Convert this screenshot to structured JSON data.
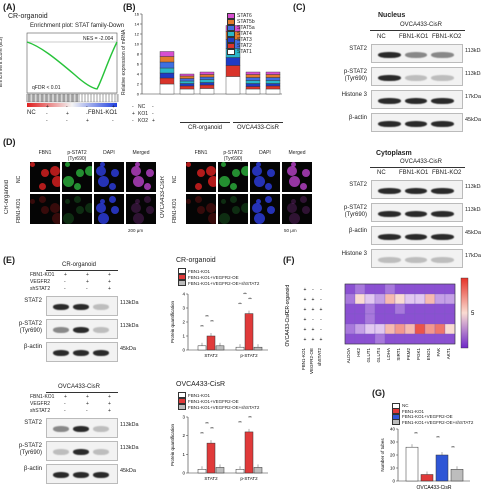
{
  "panels": {
    "A": {
      "label": "(A)",
      "subtitle": "CR-organoid",
      "plot_title": "Enrichment plot: STAT family-Down",
      "ylabel": "Enrichment score (ES)",
      "nes": "NES = -2.004",
      "fdr": "qFDR < 0.01",
      "left_group": "NC",
      "right_group": "FBN1-KO1"
    },
    "B": {
      "label": "(B)",
      "ylabel": "Relative expression of mRNA",
      "rows": [
        "NC",
        "KO1",
        "KO2"
      ],
      "marks": [
        [
          "+",
          "-",
          "-",
          "+",
          "-",
          "-"
        ],
        [
          "-",
          "+",
          "-",
          "-",
          "+",
          "-"
        ],
        [
          "-",
          "-",
          "+",
          "-",
          "-",
          "+"
        ]
      ],
      "groups": [
        "CR-organoid",
        "OVCA433-CisR"
      ],
      "legend": [
        "STAT6",
        "STAT5b",
        "STAT5a",
        "STAT4",
        "STAT3",
        "STAT2",
        "STAT1"
      ],
      "colors": [
        "#d64fd0",
        "#e27a2b",
        "#3f6fe0",
        "#2ab7c9",
        "#1f3bc4",
        "#d9342b",
        "#ffffff"
      ]
    },
    "C": {
      "label": "(C)",
      "nucleus_title": "Nucleus",
      "cell_line": "OVCA433-CisR",
      "lanes": [
        "NC",
        "FBN1-KO1",
        "FBN1-KO2"
      ],
      "nucleus_rows": [
        {
          "name": "STAT2",
          "size": "113kDa"
        },
        {
          "name": "p-STAT2 (Tyr690)",
          "size": "113kDa"
        },
        {
          "name": "Histone 3",
          "size": "17kDa"
        },
        {
          "name": "β-actin",
          "size": "45kDa"
        }
      ],
      "cytoplasm_title": "Cytoplasm",
      "cytoplasm_rows": [
        {
          "name": "STAT2",
          "size": "113kDa"
        },
        {
          "name": "p-STAT2 (Tyr690)",
          "size": "113kDa"
        },
        {
          "name": "β-actin",
          "size": "45kDa"
        },
        {
          "name": "Histone 3",
          "size": "17kDa"
        }
      ]
    },
    "D": {
      "label": "(D)",
      "cols_left": [
        "FBN1",
        "p-STAT2 (Tyr690)",
        "DAPI",
        "Merged"
      ],
      "cols_right": [
        "FBN1",
        "p-STAT2 (Tyr690)",
        "DAPI",
        "Merged"
      ],
      "row_labels": [
        "NC",
        "FBN1-KO1"
      ],
      "left_group": "CR-organoid",
      "right_group": "OVCA433-CisR",
      "scale_left": "200 μm",
      "scale_right": "50 μm"
    },
    "E": {
      "label": "(E)",
      "top_title": "CR-organoid",
      "bottom_title": "OVCA433-CisR",
      "treatments": [
        "FBN1-KO1",
        "VEGFR2",
        "shSTAT2"
      ],
      "marks": [
        [
          "+",
          "+",
          "+"
        ],
        [
          "-",
          "+",
          "+"
        ],
        [
          "-",
          "-",
          "+"
        ]
      ],
      "rows": [
        {
          "name": "STAT2",
          "size": "113kDa"
        },
        {
          "name": "p-STAT2 (Tyr690)",
          "size": "113kDa"
        },
        {
          "name": "β-actin",
          "size": "45kDa"
        }
      ],
      "chart_top_title": "CR-organoid",
      "chart_bottom_title": "OVCA433-CisR",
      "legend": [
        "FBN1-KO1",
        "FBN1-KO1+VEGFR2-OE",
        "FBN1-KO1+VEGFR2-OE+shSTAT2"
      ],
      "ylabel": "Protein quantification",
      "sig": "**"
    },
    "F": {
      "label": "(F)",
      "row_groups": [
        "CR-organoid",
        "OVCA433-CisR"
      ],
      "treat_labels": [
        "FBN1-KO1",
        "VEGFR2-OE",
        "shSTAT2"
      ],
      "genes": [
        "ALDOA",
        "HK2",
        "GLUT1",
        "GLUT4",
        "LDHA",
        "SIRT1",
        "PKM2",
        "PGK1",
        "ENO1",
        "FAK",
        "AKT1"
      ],
      "colorbar_mid": "5"
    },
    "G": {
      "label": "(G)",
      "legend": [
        "NC",
        "FBN1-KO1",
        "FBN1-KO1+VEGFR2-OE",
        "FBN1-KO1+VEGFR2-OE+shSTAT2"
      ],
      "ylabel": "Number of tubes",
      "xlabel": "OVCA433-CisR",
      "sig": "**"
    }
  },
  "chart_data": [
    {
      "type": "bar",
      "panel": "B",
      "categories": [
        "NC",
        "KO1",
        "KO2",
        "NC",
        "KO1",
        "KO2"
      ],
      "ylim": [
        0,
        16
      ],
      "yticks": [
        0,
        2,
        4,
        6,
        8,
        10,
        12,
        14,
        16
      ],
      "series": [
        {
          "name": "STAT1",
          "values": [
            2.0,
            1.0,
            1.1,
            3.5,
            1.0,
            1.0
          ]
        },
        {
          "name": "STAT2",
          "values": [
            1.2,
            0.6,
            0.7,
            2.2,
            0.5,
            0.6
          ]
        },
        {
          "name": "STAT3",
          "values": [
            1.0,
            0.5,
            0.5,
            1.6,
            0.6,
            0.5
          ]
        },
        {
          "name": "STAT4",
          "values": [
            1.0,
            0.5,
            0.6,
            1.8,
            0.6,
            0.6
          ]
        },
        {
          "name": "STAT5a",
          "values": [
            1.2,
            0.5,
            0.5,
            1.8,
            0.6,
            0.6
          ]
        },
        {
          "name": "STAT5b",
          "values": [
            1.1,
            0.5,
            0.5,
            1.6,
            0.6,
            0.6
          ]
        },
        {
          "name": "STAT6",
          "values": [
            1.0,
            0.4,
            0.5,
            1.2,
            0.5,
            0.5
          ]
        }
      ]
    },
    {
      "type": "bar",
      "panel": "E-top",
      "categories": [
        "STAT2",
        "p-STAT2"
      ],
      "ylim": [
        0,
        4
      ],
      "yticks": [
        0,
        1,
        2,
        3,
        4
      ],
      "series": [
        {
          "name": "FBN1-KO1",
          "values": [
            0.3,
            0.2
          ],
          "color": "#ffffff"
        },
        {
          "name": "FBN1-KO1+VEGFR2-OE",
          "values": [
            1.0,
            2.6
          ],
          "color": "#e03a3a"
        },
        {
          "name": "FBN1-KO1+VEGFR2-OE+shSTAT2",
          "values": [
            0.3,
            0.2
          ],
          "color": "#bdbdbd"
        }
      ]
    },
    {
      "type": "bar",
      "panel": "E-bottom",
      "categories": [
        "STAT2",
        "p-STAT2"
      ],
      "ylim": [
        0,
        3
      ],
      "yticks": [
        0,
        1,
        2,
        3
      ],
      "series": [
        {
          "name": "FBN1-KO1",
          "values": [
            0.2,
            0.2
          ],
          "color": "#ffffff"
        },
        {
          "name": "FBN1-KO1+VEGFR2-OE",
          "values": [
            1.6,
            2.2
          ],
          "color": "#e03a3a"
        },
        {
          "name": "FBN1-KO1+VEGFR2-OE+shSTAT2",
          "values": [
            0.3,
            0.3
          ],
          "color": "#bdbdbd"
        }
      ]
    },
    {
      "type": "heatmap",
      "panel": "F",
      "rows": [
        "CR-organoid r1",
        "CR-organoid r2",
        "CR-organoid r3",
        "OVCA433-CisR r1",
        "OVCA433-CisR r2",
        "OVCA433-CisR r3"
      ],
      "columns": [
        "ALDOA",
        "HK2",
        "GLUT1",
        "GLUT4",
        "LDHA",
        "SIRT1",
        "PKM2",
        "PGK1",
        "ENO1",
        "FAK",
        "AKT1"
      ],
      "values": [
        [
          1,
          2,
          1,
          1,
          2,
          1,
          1,
          1,
          1,
          1,
          1
        ],
        [
          2,
          5,
          4,
          3,
          6,
          5,
          4,
          4,
          6,
          3,
          3
        ],
        [
          1,
          1,
          2,
          1,
          1,
          2,
          1,
          1,
          1,
          1,
          1
        ],
        [
          1,
          1,
          2,
          1,
          1,
          1,
          1,
          1,
          1,
          1,
          1
        ],
        [
          2,
          3,
          4,
          4,
          6,
          7,
          6,
          9,
          7,
          8,
          5
        ],
        [
          1,
          1,
          1,
          2,
          1,
          1,
          1,
          1,
          1,
          1,
          1
        ]
      ],
      "vmin": 0,
      "vmax": 10
    },
    {
      "type": "bar",
      "panel": "G",
      "categories": [
        "NC",
        "FBN1-KO1",
        "FBN1-KO1+VEGFR2-OE",
        "FBN1-KO1+VEGFR2-OE+shSTAT2"
      ],
      "ylim": [
        0,
        40
      ],
      "yticks": [
        0,
        10,
        20,
        30,
        40
      ],
      "values": [
        26,
        5,
        20,
        9
      ],
      "colors": [
        "#ffffff",
        "#e03a3a",
        "#2f56d6",
        "#bdbdbd"
      ]
    }
  ]
}
